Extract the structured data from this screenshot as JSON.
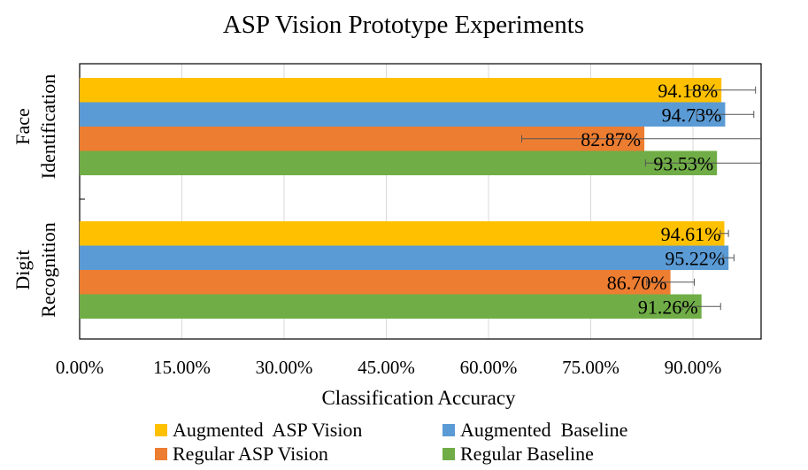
{
  "chart_data": {
    "type": "bar",
    "orientation": "horizontal",
    "title": "ASP Vision Prototype Experiments",
    "xlabel": "Classification Accuracy",
    "ylabel": "",
    "xlim": [
      0,
      100
    ],
    "x_ticks": [
      0,
      15,
      30,
      45,
      60,
      75,
      90
    ],
    "x_tick_labels": [
      "0.00%",
      "15.00%",
      "30.00%",
      "45.00%",
      "60.00%",
      "75.00%",
      "90.00%"
    ],
    "categories": [
      {
        "line1": "Face",
        "line2": "Identification"
      },
      {
        "line1": "Digit",
        "line2": "Recognition"
      }
    ],
    "series": [
      {
        "name": "Augmented  ASP Vision",
        "color": "#FFC000",
        "values": [
          94.18,
          94.61
        ],
        "labels": [
          "94.18%",
          "94.61%"
        ],
        "error": [
          5.0,
          0.6
        ]
      },
      {
        "name": "Augmented  Baseline",
        "color": "#5B9BD5",
        "values": [
          94.73,
          95.22
        ],
        "labels": [
          "94.73%",
          "95.22%"
        ],
        "error": [
          4.2,
          0.8
        ]
      },
      {
        "name": "Regular ASP Vision",
        "color": "#ED7D31",
        "values": [
          82.87,
          86.7
        ],
        "labels": [
          "82.87%",
          "86.70%"
        ],
        "error": [
          18.0,
          3.5
        ]
      },
      {
        "name": "Regular Baseline",
        "color": "#70AD47",
        "values": [
          93.53,
          91.26
        ],
        "labels": [
          "93.53%",
          "91.26%"
        ],
        "error": [
          10.5,
          2.8
        ]
      }
    ],
    "grid": true,
    "error_bars": true,
    "legend_position": "bottom"
  }
}
